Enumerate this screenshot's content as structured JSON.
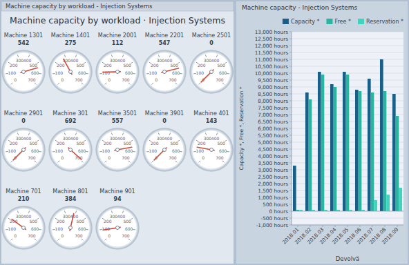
{
  "chart_data": [
    {
      "type": "gauge",
      "title": "Machine capacity by workload · Injection Systems",
      "subtitle": "Machine capacity by workload - Injection Systems",
      "categories": [
        "Machine 1301",
        "Machine 1401",
        "Machine 2001",
        "Machine 2201",
        "Machine 2501",
        "Machine 2901",
        "Machine 301",
        "Machine 3501",
        "Machine 3901",
        "Machine 401",
        "Machine 701",
        "Machine 801",
        "Machine 901"
      ],
      "values": [
        542,
        275,
        112,
        547,
        0,
        0,
        692,
        557,
        0,
        143,
        210,
        384,
        94
      ],
      "ylim": [
        0,
        700
      ],
      "yticks": [
        0,
        100,
        200,
        300,
        400,
        500,
        600,
        700
      ],
      "data_labels": true
    },
    {
      "type": "bar",
      "title": "Machine capacity - Injection Systems",
      "categories": [
        "2018.01",
        "2018.02",
        "2018.03",
        "2018.04",
        "2018.05",
        "2018.06",
        "2018.07",
        "2018.08",
        "2018.09"
      ],
      "series": [
        {
          "name": "Capacity *",
          "color": "#1a5f8a",
          "values": [
            3300,
            8600,
            10100,
            9200,
            10100,
            8800,
            9600,
            11000,
            8500
          ]
        },
        {
          "name": "Free *",
          "color": "#2ab5a0",
          "values": [
            100,
            8100,
            9900,
            9000,
            9900,
            8700,
            8600,
            8700,
            6900
          ]
        },
        {
          "name": "Reservation *",
          "color": "#40d4c0",
          "values": [
            100,
            100,
            100,
            100,
            100,
            100,
            800,
            1200,
            1700
          ]
        }
      ],
      "xlabel": "Devolvă",
      "ylabel": "Capacity *, Free *, Reservation *",
      "ylim": [
        -1000,
        13000
      ],
      "yticks": [
        {
          "value": -1000,
          "label": "-1,000 hours"
        },
        {
          "value": -500,
          "label": "-500 hours"
        },
        {
          "value": 0,
          "label": "0 hours"
        },
        {
          "value": 500,
          "label": "500 hours"
        },
        {
          "value": 1000,
          "label": "1,000 hours"
        },
        {
          "value": 1500,
          "label": "1,500 hours"
        },
        {
          "value": 2000,
          "label": "2,000 hours"
        },
        {
          "value": 2500,
          "label": "2,500 hours"
        },
        {
          "value": 3000,
          "label": "3,000 hours"
        },
        {
          "value": 3500,
          "label": "3,500 hours"
        },
        {
          "value": 4000,
          "label": "4,000 hours"
        },
        {
          "value": 4500,
          "label": "4,500 hours"
        },
        {
          "value": 5000,
          "label": "5,000 hours"
        },
        {
          "value": 5500,
          "label": "5,500 hours"
        },
        {
          "value": 6000,
          "label": "6,000 hours"
        },
        {
          "value": 6500,
          "label": "6,500 hours"
        },
        {
          "value": 7000,
          "label": "7,000 hours"
        },
        {
          "value": 7500,
          "label": "7,500 hours"
        },
        {
          "value": 8000,
          "label": "8,000 hours"
        },
        {
          "value": 8500,
          "label": "8,500 hours"
        },
        {
          "value": 9000,
          "label": "9,000 hours"
        },
        {
          "value": 9500,
          "label": "9,500 hours"
        },
        {
          "value": 10000,
          "label": "10,000 hours"
        },
        {
          "value": 10500,
          "label": "10,500 hours"
        },
        {
          "value": 11000,
          "label": "11,000 hours"
        },
        {
          "value": 11500,
          "label": "11,500 hours"
        },
        {
          "value": 12000,
          "label": "12,000 hours"
        },
        {
          "value": 12500,
          "label": "12,500 hours"
        },
        {
          "value": 13000,
          "label": "13,000 hours"
        }
      ],
      "grid": true,
      "legend": "upper right"
    }
  ]
}
